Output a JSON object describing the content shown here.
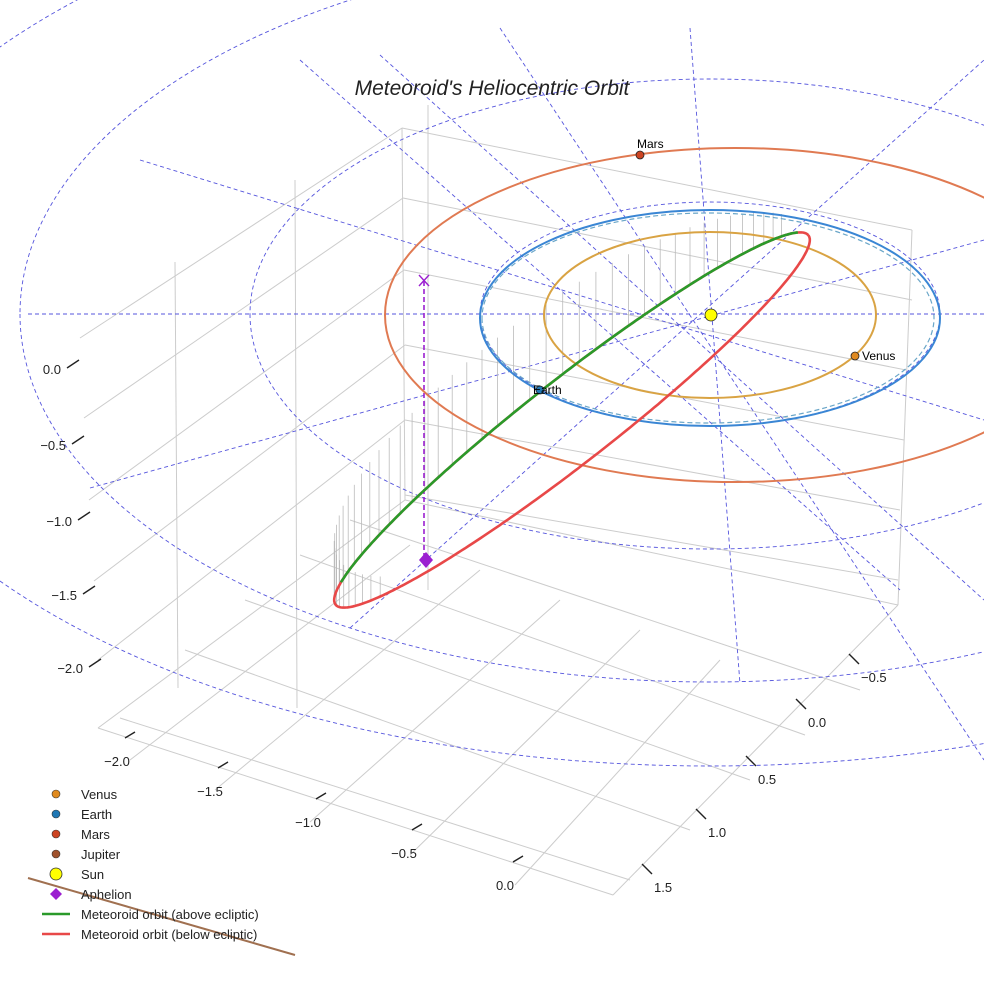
{
  "chart_data": {
    "type": "line",
    "title": "Meteoroid's Heliocentric Orbit",
    "projection": "3d",
    "z_ticks": [
      "0.0",
      "−0.5",
      "−1.0",
      "−1.5",
      "−2.0"
    ],
    "x_ticks": [
      "−2.0",
      "−1.5",
      "−1.0",
      "−0.5",
      "0.0"
    ],
    "y_ticks": [
      "−0.5",
      "0.0",
      "0.5",
      "1.0",
      "1.5"
    ],
    "orbits": [
      {
        "name": "Venus",
        "radius_au": 0.72,
        "color": "#d9a343"
      },
      {
        "name": "Earth",
        "radius_au": 1.0,
        "color": "#3a86d4"
      },
      {
        "name": "Mars",
        "radius_au": 1.52,
        "color": "#e07a52"
      }
    ],
    "bodies": [
      {
        "name": "Mars",
        "label": "Mars",
        "color": "#cc4422"
      },
      {
        "name": "Venus",
        "label": "Venus",
        "color": "#e08a1e"
      },
      {
        "name": "Earth",
        "label": "Earth",
        "color": "#1f77b4"
      },
      {
        "name": "Sun",
        "label": "",
        "color": "#ffff00"
      }
    ],
    "meteoroid_orbit": {
      "above_ecliptic_color": "#2a9a2a",
      "below_ecliptic_color": "#e84848"
    },
    "aphelion": {
      "color": "#9b1fd0"
    },
    "legend": {
      "placement": "bottom-left",
      "entries": [
        {
          "label": "Venus",
          "marker": "circle",
          "color": "#e08a1e"
        },
        {
          "label": "Earth",
          "marker": "circle",
          "color": "#1f77b4"
        },
        {
          "label": "Mars",
          "marker": "circle",
          "color": "#cc4422"
        },
        {
          "label": "Jupiter",
          "marker": "circle",
          "color": "#a0522d"
        },
        {
          "label": "Sun",
          "marker": "circle-large",
          "color": "#ffff00"
        },
        {
          "label": "Aphelion",
          "marker": "diamond",
          "color": "#9b1fd0"
        },
        {
          "label": "Meteoroid orbit (above ecliptic)",
          "marker": "line",
          "color": "#2a9a2a"
        },
        {
          "label": "Meteoroid orbit (below ecliptic)",
          "marker": "line",
          "color": "#e84848"
        }
      ]
    },
    "colors": {
      "ecliptic_grid": "#5555dd",
      "jupiter_orbit": "#a07050",
      "pane_grid": "#cccccc"
    }
  }
}
